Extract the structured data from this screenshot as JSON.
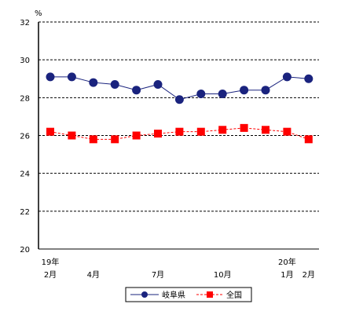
{
  "chart_data": {
    "type": "line",
    "ylabel": "%",
    "ylim": [
      20,
      32
    ],
    "yticks": [
      20,
      22,
      24,
      26,
      28,
      30,
      32
    ],
    "grid": true,
    "legend_position": "bottom-center",
    "x_labels": [
      {
        "index": 0,
        "line1": "19年",
        "line2": "2月"
      },
      {
        "index": 2,
        "line1": "",
        "line2": "4月"
      },
      {
        "index": 5,
        "line1": "",
        "line2": "7月"
      },
      {
        "index": 8,
        "line1": "",
        "line2": "10月"
      },
      {
        "index": 11,
        "line1": "20年",
        "line2": "1月"
      },
      {
        "index": 12,
        "line1": "",
        "line2": "2月"
      }
    ],
    "series": [
      {
        "name": "岐阜県",
        "color": "#1a237e",
        "marker": "circle",
        "line": "solid",
        "values": [
          29.1,
          29.1,
          28.8,
          28.7,
          28.4,
          28.7,
          27.9,
          28.2,
          28.2,
          28.4,
          28.4,
          29.1,
          29.0
        ]
      },
      {
        "name": "全国",
        "color": "#ff0000",
        "marker": "square",
        "line": "dashed",
        "values": [
          26.2,
          26.0,
          25.8,
          25.8,
          26.0,
          26.1,
          26.2,
          26.2,
          26.3,
          26.4,
          26.3,
          26.2,
          25.8
        ]
      }
    ]
  }
}
